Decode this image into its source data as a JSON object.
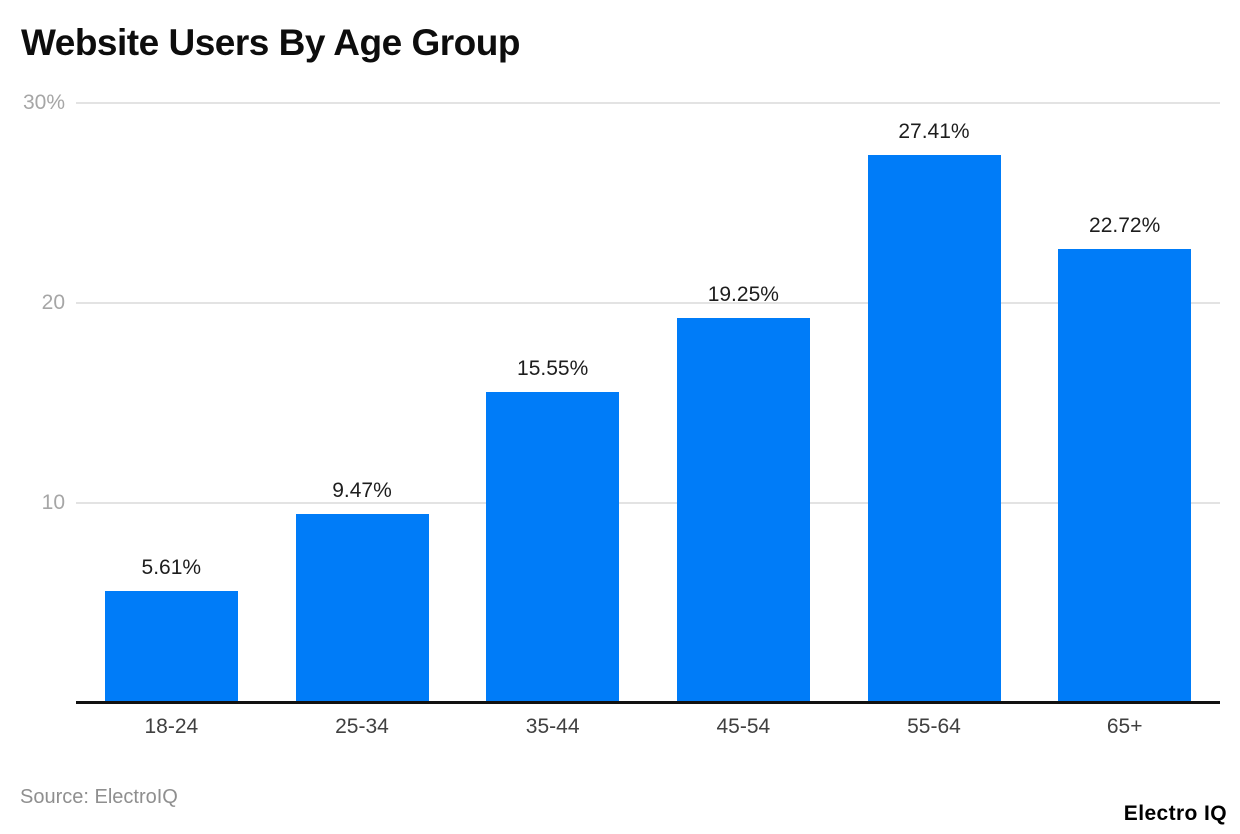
{
  "header": {
    "title": "Website Users By Age Group"
  },
  "chart_data": {
    "type": "bar",
    "title": "Website Users By Age Group",
    "categories": [
      "18-24",
      "25-34",
      "35-44",
      "45-54",
      "55-64",
      "65+"
    ],
    "values": [
      5.61,
      9.47,
      15.55,
      19.25,
      27.41,
      22.72
    ],
    "value_labels": [
      "5.61%",
      "9.47%",
      "15.55%",
      "19.25%",
      "27.41%",
      "22.72%"
    ],
    "xlabel": "",
    "ylabel": "",
    "ylim": [
      0,
      30
    ],
    "yticks": [
      {
        "value": 30,
        "label": "30%"
      },
      {
        "value": 20,
        "label": "20"
      },
      {
        "value": 10,
        "label": "10"
      }
    ],
    "grid": true,
    "legend": "none"
  },
  "colors": {
    "bar": "#007cf8",
    "gridline": "#e3e3e3",
    "axis_line": "#111111",
    "tick_label": "#a6a6a6",
    "value_label": "#1d1d1d",
    "category_label": "#404040",
    "source_text": "#8f8f8f",
    "title_text": "#0d0d0d"
  },
  "footer": {
    "source": "Source: ElectroIQ",
    "brand": "Electro IQ"
  }
}
